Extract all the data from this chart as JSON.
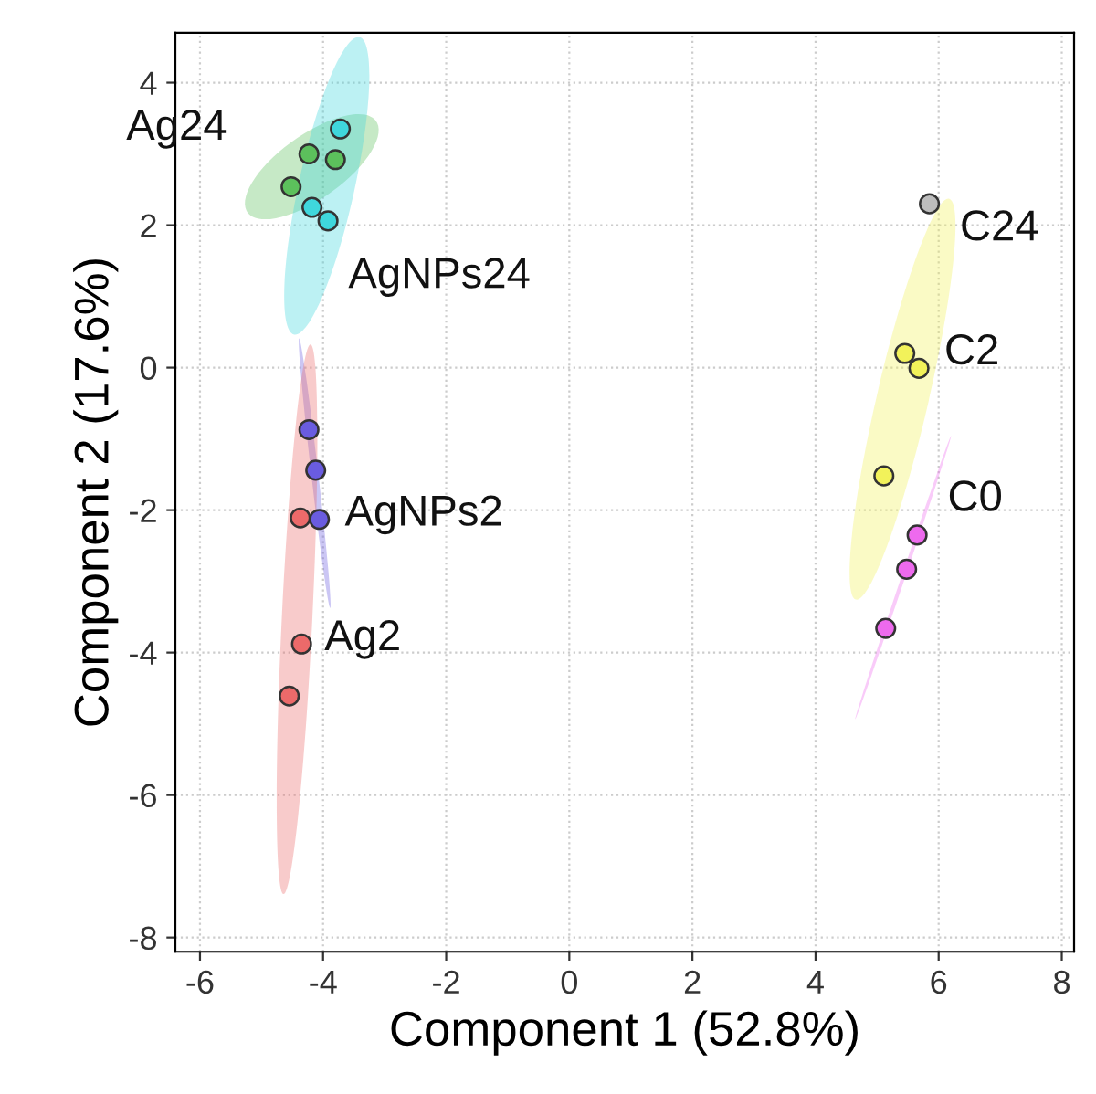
{
  "chart_data": {
    "type": "scatter",
    "xlabel": "Component 1 (52.8%)",
    "ylabel": "Component 2 (17.6%)",
    "xlim": [
      -6.4,
      8.2
    ],
    "ylim": [
      -8.2,
      4.7
    ],
    "xticks": [
      {
        "value": -6,
        "label": "-6"
      },
      {
        "value": -4,
        "label": "-4"
      },
      {
        "value": -2,
        "label": "-2"
      },
      0,
      2,
      4,
      6,
      8
    ],
    "yticks": [
      {
        "value": -8,
        "label": "-8"
      },
      {
        "value": -6,
        "label": "-6"
      },
      {
        "value": -4,
        "label": "-4"
      },
      {
        "value": -2,
        "label": "-2"
      },
      0,
      2,
      4
    ],
    "grid": true,
    "marker": "circle",
    "legend": false,
    "series": [
      {
        "name": "Ag24",
        "color": "#5cc05c",
        "x": [
          -4.23,
          -4.52,
          -3.8
        ],
        "values": [
          3.0,
          2.54,
          2.92
        ]
      },
      {
        "name": "AgNPs24",
        "color": "#3fd7dc",
        "x": [
          -3.72,
          -4.18,
          -3.92
        ],
        "values": [
          3.35,
          2.25,
          2.06
        ]
      },
      {
        "name": "AgNPs2",
        "color": "#6a5ce0",
        "x": [
          -4.23,
          -4.12,
          -4.06
        ],
        "values": [
          -0.87,
          -1.44,
          -2.13
        ]
      },
      {
        "name": "Ag2",
        "color": "#ec6a6a",
        "x": [
          -4.37,
          -4.35,
          -4.55
        ],
        "values": [
          -2.11,
          -3.88,
          -4.61
        ]
      },
      {
        "name": "C24",
        "color": "#bdbdbd",
        "x": [
          5.85
        ],
        "values": [
          2.3
        ]
      },
      {
        "name": "C2",
        "color": "#f2f25a",
        "x": [
          5.45,
          5.68,
          5.11
        ],
        "values": [
          0.2,
          -0.01,
          -1.52
        ]
      },
      {
        "name": "C0",
        "color": "#ee6aee",
        "x": [
          5.65,
          5.48,
          5.14
        ],
        "values": [
          -2.35,
          -2.83,
          -3.66
        ]
      }
    ]
  }
}
